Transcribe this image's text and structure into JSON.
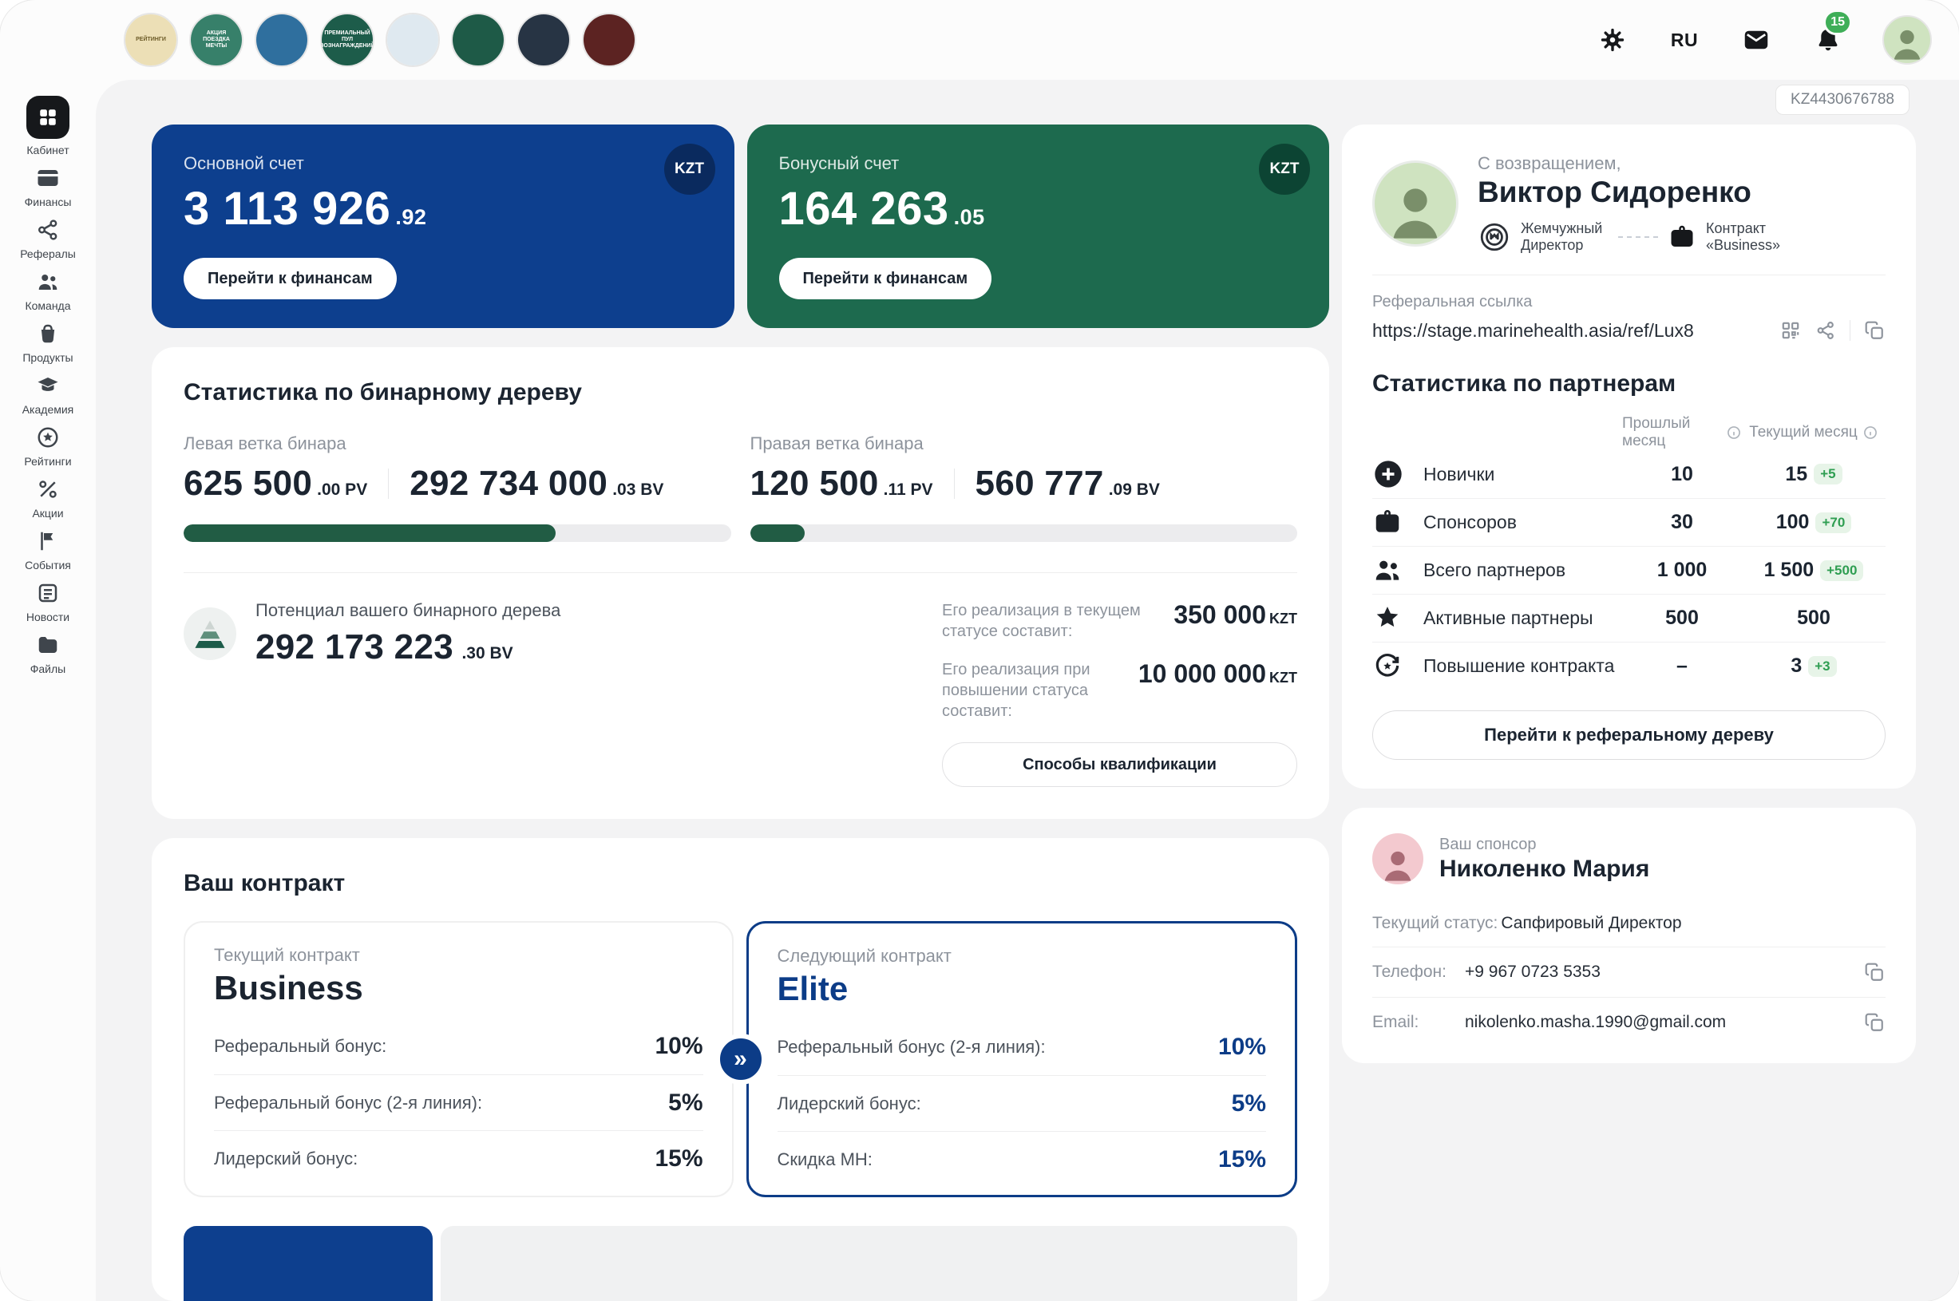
{
  "theme": {
    "blue": "#0d3f8e",
    "green": "#1d6a4e",
    "progress_green": "#215c44",
    "kzt_badge_blue": "#0a2a5e",
    "kzt_badge_green": "#0c4433",
    "elite_blue": "#0c3c87",
    "notification_green": "#3fae58",
    "delta_bg": "#e7f4e8",
    "delta_text": "#2f9e52"
  },
  "topbar": {
    "lang": "RU",
    "notification_count": "15",
    "stories": [
      {
        "label": "РЕЙТИНГИ",
        "color": "#ecdfb6"
      },
      {
        "label": "АКЦИЯ ПОЕЗДКА МЕЧТЫ",
        "color": "#37806a"
      },
      {
        "label": "",
        "color": "#2f6f9e"
      },
      {
        "label": "ПРЕМИАЛЬНЫЙ ПУЛ ВОЗНАГРАЖДЕНИЙ",
        "color": "#1d5c4a"
      },
      {
        "label": "",
        "color": "#dfe9f0"
      },
      {
        "label": "",
        "color": "#1e5a47"
      },
      {
        "label": "",
        "color": "#273444"
      },
      {
        "label": "",
        "color": "#5c2322"
      }
    ],
    "avatar_color": "#cfe3c0"
  },
  "sidebar": {
    "items": [
      {
        "label": "Кабинет"
      },
      {
        "label": "Финансы"
      },
      {
        "label": "Рефералы"
      },
      {
        "label": "Команда"
      },
      {
        "label": "Продукты"
      },
      {
        "label": "Академия"
      },
      {
        "label": "Рейтинги"
      },
      {
        "label": "Акции"
      },
      {
        "label": "События"
      },
      {
        "label": "Новости"
      },
      {
        "label": "Файлы"
      }
    ]
  },
  "accounts": {
    "main": {
      "label": "Основной счет",
      "currency": "KZT",
      "amount": "3 113 926",
      "fraction": ".92",
      "button": "Перейти к финансам"
    },
    "bonus": {
      "label": "Бонусный счет",
      "currency": "KZT",
      "amount": "164 263",
      "fraction": ".05",
      "button": "Перейти к финансам"
    }
  },
  "binary": {
    "title": "Статистика по бинарному дереву",
    "left": {
      "label": "Левая ветка бинара",
      "pv": "625 500",
      "pv_unit": ".00 PV",
      "bv": "292 734 000",
      "bv_unit": ".03 BV",
      "progress": 68
    },
    "right": {
      "label": "Правая ветка бинара",
      "pv": "120 500",
      "pv_unit": ".11 PV",
      "bv": "560 777",
      "bv_unit": ".09 BV",
      "progress": 10
    },
    "potential_label": "Потенциал вашего бинарного дерева",
    "potential_value": "292 173 223",
    "potential_unit": ".30 BV",
    "realization_current_label": "Его реализация в текущем статусе составит:",
    "realization_current_value": "350 000",
    "realization_current_currency": "KZT",
    "realization_next_label": "Его реализация при повышении статуса составит:",
    "realization_next_value": "10 000 000",
    "realization_next_currency": "KZT",
    "qualification_button": "Способы квалификации"
  },
  "contract": {
    "title": "Ваш контракт",
    "current": {
      "caption": "Текущий контракт",
      "name": "Business",
      "rows": [
        {
          "label": "Реферальный бонус:",
          "value": "10%"
        },
        {
          "label": "Реферальный бонус (2-я линия):",
          "value": "5%"
        },
        {
          "label": "Лидерский бонус:",
          "value": "15%"
        }
      ]
    },
    "next": {
      "caption": "Следующий контракт",
      "name": "Elite",
      "rows": [
        {
          "label": "Реферальный бонус (2-я линия):",
          "value": "10%"
        },
        {
          "label": "Лидерский бонус:",
          "value": "5%"
        },
        {
          "label": "Скидка МН:",
          "value": "15%"
        }
      ]
    }
  },
  "profile": {
    "account_id": "KZ4430676788",
    "greeting": "С возвращением,",
    "name": "Виктор Сидоренко",
    "rank": "Жемчужный Директор",
    "contract": "Контракт «Business»",
    "referral_label": "Реферальная ссылка",
    "referral_link": "https://stage.marinehealth.asia/ref/Lux8"
  },
  "partners": {
    "title": "Статистика по партнерам",
    "col_prev": "Прошлый месяц",
    "col_curr": "Текущий месяц",
    "rows": [
      {
        "label": "Новички",
        "prev": "10",
        "curr": "15",
        "delta": "+5"
      },
      {
        "label": "Спонсоров",
        "prev": "30",
        "curr": "100",
        "delta": "+70"
      },
      {
        "label": "Всего партнеров",
        "prev": "1 000",
        "curr": "1 500",
        "delta": "+500"
      },
      {
        "label": "Активные партнеры",
        "prev": "500",
        "curr": "500",
        "delta": ""
      },
      {
        "label": "Повышение контракта",
        "prev": "–",
        "curr": "3",
        "delta": "+3"
      }
    ],
    "tree_button": "Перейти к реферальному дереву"
  },
  "sponsor": {
    "caption": "Ваш спонсор",
    "name": "Николенко Мария",
    "avatar_color": "#f3c9cf",
    "status_label": "Текущий статус:",
    "status_value": "Сапфировый Директор",
    "phone_label": "Телефон:",
    "phone_value": "+9 967 0723 5353",
    "email_label": "Email:",
    "email_value": "nikolenko.masha.1990@gmail.com"
  }
}
